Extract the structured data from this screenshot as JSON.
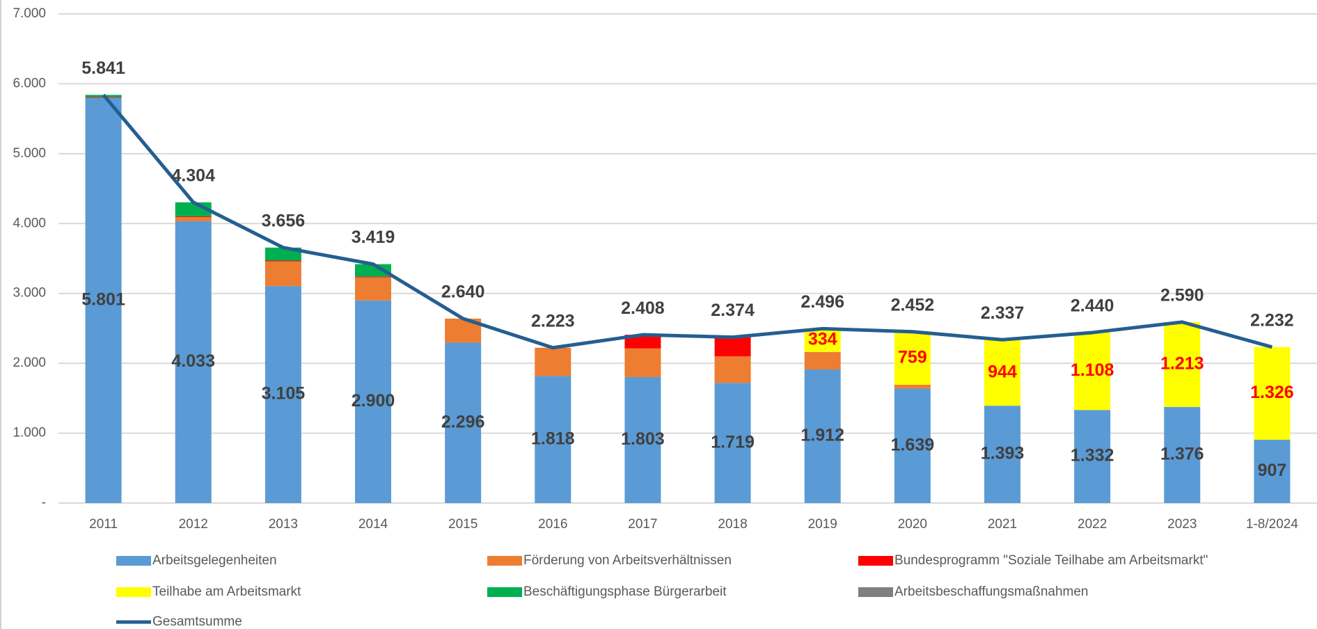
{
  "chart_data": {
    "type": "bar",
    "stacked": true,
    "categories": [
      "2011",
      "2012",
      "2013",
      "2014",
      "2015",
      "2016",
      "2017",
      "2018",
      "2019",
      "2020",
      "2021",
      "2022",
      "2023",
      "1-8/2024"
    ],
    "ylim": [
      0,
      7000
    ],
    "yticks": [
      {
        "value": 0,
        "label": "-"
      },
      {
        "value": 1000,
        "label": "1.000"
      },
      {
        "value": 2000,
        "label": "2.000"
      },
      {
        "value": 3000,
        "label": "3.000"
      },
      {
        "value": 4000,
        "label": "4.000"
      },
      {
        "value": 5000,
        "label": "5.000"
      },
      {
        "value": 6000,
        "label": "6.000"
      },
      {
        "value": 7000,
        "label": "7.000"
      }
    ],
    "grid": true,
    "legend": "bottom",
    "series": [
      {
        "name": "Arbeitsgelegenheiten",
        "color": "#5b9bd5",
        "label_color": "#404040",
        "values": [
          5801,
          4033,
          3105,
          2900,
          2296,
          1818,
          1803,
          1719,
          1912,
          1639,
          1393,
          1332,
          1376,
          907
        ],
        "value_labels": [
          "5.801",
          "4.033",
          "3.105",
          "2.900",
          "2.296",
          "1.818",
          "1.803",
          "1.719",
          "1.912",
          "1.639",
          "1.393",
          "1.332",
          "1.376",
          "907"
        ]
      },
      {
        "name": "Förderung von Arbeitsverhältnissen",
        "color": "#ed7d31",
        "values": [
          null,
          60,
          355,
          330,
          344,
          405,
          410,
          380,
          250,
          54,
          null,
          null,
          null,
          null
        ]
      },
      {
        "name": "Bundesprogramm \"Soziale Teilhabe am Arbeitsmarkt\"",
        "color": "#ff0000",
        "values": [
          10,
          10,
          10,
          10,
          null,
          null,
          195,
          275,
          null,
          null,
          null,
          null,
          null,
          null
        ]
      },
      {
        "name": "Teilhabe am Arbeitsmarkt",
        "color": "#ffff00",
        "label_color": "#ff0000",
        "values": [
          null,
          null,
          null,
          null,
          null,
          null,
          null,
          null,
          334,
          759,
          944,
          1108,
          1213,
          1326
        ],
        "value_labels": [
          null,
          null,
          null,
          null,
          null,
          null,
          null,
          null,
          "334",
          "759",
          "944",
          "1.108",
          "1.213",
          "1.326"
        ]
      },
      {
        "name": "Beschäftigungsphase Bürgerarbeit",
        "color": "#00b050",
        "values": [
          30,
          201,
          186,
          179,
          null,
          null,
          null,
          null,
          null,
          null,
          null,
          null,
          null,
          null
        ]
      },
      {
        "name": "Arbeitsbeschaffungsmaßnahmen",
        "color": "#7f7f7f",
        "values": [
          null,
          null,
          null,
          null,
          null,
          null,
          null,
          null,
          null,
          null,
          null,
          null,
          null,
          null
        ]
      },
      {
        "name": "Gesamtsumme",
        "color": "#255e91",
        "kind": "line",
        "label_color": "#404040",
        "values": [
          5841,
          4304,
          3656,
          3419,
          2640,
          2223,
          2408,
          2374,
          2496,
          2452,
          2337,
          2440,
          2590,
          2232
        ],
        "value_labels": [
          "5.841",
          "4.304",
          "3.656",
          "3.419",
          "2.640",
          "2.223",
          "2.408",
          "2.374",
          "2.496",
          "2.452",
          "2.337",
          "2.440",
          "2.590",
          "2.232"
        ]
      }
    ]
  }
}
